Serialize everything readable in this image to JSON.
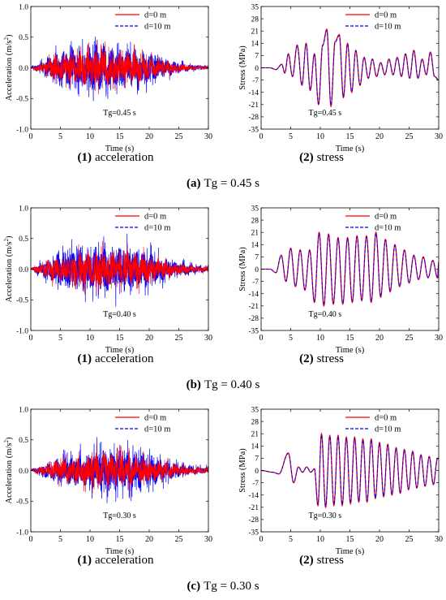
{
  "colors": {
    "series_a": "#ff0000",
    "series_b": "#0000ff",
    "axis": "#000000"
  },
  "rows": [
    {
      "caption_label": "(a)",
      "caption_text": "Tg = 0.45 s",
      "acc": {
        "subcaption_num": "(1)",
        "subcaption_text": "acceleration",
        "xlabel": "Time (s)",
        "ylabel_main": "Acceleration (m/s",
        "ylabel_sup": "2",
        "ylabel_end": ")",
        "annotation": "Tg=0.45 s",
        "legend": [
          "d=0 m",
          "d=10 m"
        ],
        "xticks": [
          "0",
          "5",
          "10",
          "15",
          "20",
          "25",
          "30"
        ],
        "yticks": [
          "-1.0",
          "-0.5",
          "0.0",
          "0.5",
          "1.0"
        ]
      },
      "stress": {
        "subcaption_num": "(2)",
        "subcaption_text": "stress",
        "xlabel": "Time (s)",
        "ylabel": "Stress (MPa)",
        "annotation": "Tg=0.45 s",
        "legend": [
          "d=0 m",
          "d=10 m"
        ],
        "xticks": [
          "0",
          "5",
          "10",
          "15",
          "20",
          "25",
          "30"
        ],
        "yticks": [
          "-35",
          "-28",
          "-21",
          "-14",
          "-7",
          "0",
          "7",
          "14",
          "21",
          "28",
          "35"
        ]
      }
    },
    {
      "caption_label": "(b)",
      "caption_text": "Tg = 0.40 s",
      "acc": {
        "subcaption_num": "(1)",
        "subcaption_text": "acceleration",
        "xlabel": "Time (s)",
        "ylabel_main": "Acceleration (m/s",
        "ylabel_sup": "2",
        "ylabel_end": ")",
        "annotation": "Tg=0.40 s",
        "legend": [
          "d=0 m",
          "d=10 m"
        ],
        "xticks": [
          "0",
          "5",
          "10",
          "15",
          "20",
          "25",
          "30"
        ],
        "yticks": [
          "-1.0",
          "-0.5",
          "0.0",
          "0.5",
          "1.0"
        ]
      },
      "stress": {
        "subcaption_num": "(2)",
        "subcaption_text": "stress",
        "xlabel": "Time (s)",
        "ylabel": "Stress (MPa)",
        "annotation": "Tg=0.40 s",
        "legend": [
          "d=0 m",
          "d=10 m"
        ],
        "xticks": [
          "0",
          "5",
          "10",
          "15",
          "20",
          "25",
          "30"
        ],
        "yticks": [
          "-35",
          "-28",
          "-21",
          "-14",
          "-7",
          "0",
          "7",
          "14",
          "21",
          "28",
          "35"
        ]
      }
    },
    {
      "caption_label": "(c)",
      "caption_text": "Tg = 0.30 s",
      "acc": {
        "subcaption_num": "(1)",
        "subcaption_text": "acceleration",
        "xlabel": "Time (s)",
        "ylabel_main": "Acceleration (m/s",
        "ylabel_sup": "2",
        "ylabel_end": ")",
        "annotation": "Tg=0.30 s",
        "legend": [
          "d=0 m",
          "d=10 m"
        ],
        "xticks": [
          "0",
          "5",
          "10",
          "15",
          "20",
          "25",
          "30"
        ],
        "yticks": [
          "-1.0",
          "-0.5",
          "0.0",
          "0.5",
          "1.0"
        ]
      },
      "stress": {
        "subcaption_num": "(2)",
        "subcaption_text": "stress",
        "xlabel": "Time (s)",
        "ylabel": "Stress (MPa)",
        "annotation": "Tg=0.30 s",
        "legend": [
          "d=0 m",
          "d=10 m"
        ],
        "xticks": [
          "0",
          "5",
          "10",
          "15",
          "20",
          "25",
          "30"
        ],
        "yticks": [
          "-35",
          "-28",
          "-21",
          "-14",
          "-7",
          "0",
          "7",
          "14",
          "21",
          "28",
          "35"
        ]
      }
    }
  ],
  "chart_data": [
    {
      "type": "line",
      "panel": "a-1",
      "xlabel": "Time (s)",
      "ylabel": "Acceleration (m/s2)",
      "xlim": [
        0,
        30
      ],
      "ylim": [
        -1.0,
        1.0
      ],
      "grid": false,
      "legend_position": "top-right",
      "annotation": "Tg=0.45 s",
      "envelope": {
        "x": [
          0,
          2,
          4,
          6,
          8,
          10,
          12,
          14,
          16,
          18,
          20,
          22,
          24,
          26,
          28,
          30
        ],
        "amp": [
          0.02,
          0.15,
          0.38,
          0.45,
          0.5,
          0.6,
          0.55,
          0.5,
          0.5,
          0.45,
          0.35,
          0.25,
          0.18,
          0.1,
          0.07,
          0.05
        ]
      },
      "series": [
        {
          "name": "d=0 m",
          "color": "#ff0000",
          "style": "solid",
          "envelope_scale": 0.78
        },
        {
          "name": "d=10 m",
          "color": "#0000ff",
          "style": "dashed",
          "envelope_scale": 1.0
        }
      ]
    },
    {
      "type": "line",
      "panel": "a-2",
      "xlabel": "Time (s)",
      "ylabel": "Stress (MPa)",
      "xlim": [
        0,
        30
      ],
      "ylim": [
        -35,
        35
      ],
      "grid": false,
      "legend_position": "top-right",
      "annotation": "Tg=0.45 s",
      "extrema": {
        "x": [
          0,
          1.5,
          2.5,
          3.5,
          4.0,
          4.6,
          5.3,
          6.1,
          6.9,
          7.6,
          8.3,
          9.0,
          9.7,
          10.4,
          11.1,
          11.8,
          12.5,
          13.2,
          13.9,
          14.6,
          15.3,
          16.0,
          16.7,
          17.4,
          18.1,
          18.8,
          19.5,
          20.2,
          20.9,
          21.6,
          22.3,
          23.0,
          23.7,
          24.4,
          25.1,
          25.8,
          26.5,
          27.2,
          27.9,
          28.6,
          29.3,
          30.0
        ],
        "y": [
          0,
          0,
          -1,
          2,
          -3,
          8,
          -5,
          13,
          -10,
          14,
          -13,
          8,
          -21,
          13,
          22,
          -22,
          15,
          19,
          -17,
          14,
          -14,
          10,
          -10,
          6,
          -6,
          5,
          -5,
          3,
          -4,
          5,
          -4,
          6,
          -5,
          8,
          -6,
          10,
          -6,
          5,
          -4,
          9,
          -5,
          -7
        ]
      },
      "series": [
        {
          "name": "d=0 m",
          "color": "#ff0000",
          "style": "solid"
        },
        {
          "name": "d=10 m",
          "color": "#0000ff",
          "style": "dashed"
        }
      ]
    },
    {
      "type": "line",
      "panel": "b-1",
      "xlabel": "Time (s)",
      "ylabel": "Acceleration (m/s2)",
      "xlim": [
        0,
        30
      ],
      "ylim": [
        -1.0,
        1.0
      ],
      "grid": false,
      "legend_position": "top-right",
      "annotation": "Tg=0.40 s",
      "envelope": {
        "x": [
          0,
          2,
          4,
          6,
          8,
          10,
          12,
          14,
          16,
          18,
          20,
          22,
          24,
          26,
          28,
          30
        ],
        "amp": [
          0.02,
          0.2,
          0.35,
          0.45,
          0.5,
          0.55,
          0.55,
          0.55,
          0.55,
          0.5,
          0.4,
          0.3,
          0.2,
          0.15,
          0.1,
          0.08
        ]
      },
      "series": [
        {
          "name": "d=0 m",
          "color": "#ff0000",
          "style": "solid",
          "envelope_scale": 0.78
        },
        {
          "name": "d=10 m",
          "color": "#0000ff",
          "style": "dashed",
          "envelope_scale": 1.0
        }
      ]
    },
    {
      "type": "line",
      "panel": "b-2",
      "xlabel": "Time (s)",
      "ylabel": "Stress (MPa)",
      "xlim": [
        0,
        30
      ],
      "ylim": [
        -35,
        35
      ],
      "grid": false,
      "legend_position": "top-right",
      "annotation": "Tg=0.40 s",
      "extrema": {
        "x": [
          0,
          1.5,
          2.5,
          3.4,
          4.2,
          5.0,
          5.8,
          6.6,
          7.4,
          8.2,
          9.0,
          9.8,
          10.6,
          11.4,
          12.2,
          13.0,
          13.8,
          14.6,
          15.4,
          16.2,
          17.0,
          17.8,
          18.6,
          19.4,
          20.2,
          21.0,
          21.8,
          22.6,
          23.4,
          24.2,
          25.0,
          25.8,
          26.6,
          27.4,
          28.2,
          29.0,
          29.8,
          30.0
        ],
        "y": [
          0,
          0,
          -2,
          8,
          -7,
          12,
          -10,
          11,
          -12,
          11,
          -19,
          21,
          -21,
          20,
          -20,
          18,
          -20,
          18,
          -19,
          19,
          -18,
          19,
          -19,
          21,
          -16,
          17,
          -13,
          14,
          -10,
          11,
          -8,
          8,
          -6,
          7,
          -5,
          5,
          -5,
          4
        ]
      },
      "series": [
        {
          "name": "d=0 m",
          "color": "#ff0000",
          "style": "solid"
        },
        {
          "name": "d=10 m",
          "color": "#0000ff",
          "style": "dashed"
        }
      ]
    },
    {
      "type": "line",
      "panel": "c-1",
      "xlabel": "Time (s)",
      "ylabel": "Acceleration (m/s2)",
      "xlim": [
        0,
        30
      ],
      "ylim": [
        -1.0,
        1.0
      ],
      "grid": false,
      "legend_position": "top-right",
      "annotation": "Tg=0.30 s",
      "envelope": {
        "x": [
          0,
          2,
          4,
          6,
          8,
          10,
          12,
          14,
          16,
          18,
          20,
          22,
          24,
          26,
          28,
          30
        ],
        "amp": [
          0.02,
          0.15,
          0.3,
          0.35,
          0.4,
          0.45,
          0.55,
          0.5,
          0.5,
          0.45,
          0.4,
          0.3,
          0.2,
          0.15,
          0.1,
          0.08
        ]
      },
      "series": [
        {
          "name": "d=0 m",
          "color": "#ff0000",
          "style": "solid",
          "envelope_scale": 0.78
        },
        {
          "name": "d=10 m",
          "color": "#0000ff",
          "style": "dashed",
          "envelope_scale": 1.0
        }
      ]
    },
    {
      "type": "line",
      "panel": "c-2",
      "xlabel": "Time (s)",
      "ylabel": "Stress (MPa)",
      "xlim": [
        0,
        30
      ],
      "ylim": [
        -35,
        35
      ],
      "grid": false,
      "legend_position": "top-right",
      "annotation": "Tg=0.30 s",
      "extrema": {
        "x": [
          0,
          2.0,
          3.0,
          4.6,
          5.5,
          6.3,
          7.0,
          7.7,
          8.4,
          9.0,
          9.6,
          10.2,
          10.9,
          11.6,
          12.3,
          13.0,
          13.7,
          14.4,
          15.1,
          15.8,
          16.5,
          17.2,
          17.9,
          18.6,
          19.3,
          20.0,
          20.7,
          21.4,
          22.1,
          22.8,
          23.5,
          24.2,
          24.9,
          25.6,
          26.3,
          27.0,
          27.7,
          28.4,
          29.1,
          29.8,
          30.0
        ],
        "y": [
          0,
          -1,
          -2,
          10,
          -7,
          2,
          -1,
          2,
          -1,
          1,
          -20,
          21,
          -21,
          20,
          -20,
          20,
          -20,
          19,
          -19,
          19,
          -18,
          18,
          -18,
          18,
          -16,
          16,
          -15,
          15,
          -14,
          13,
          -13,
          12,
          -11,
          11,
          -10,
          9,
          -9,
          8,
          -8,
          7,
          7
        ]
      },
      "series": [
        {
          "name": "d=0 m",
          "color": "#ff0000",
          "style": "solid"
        },
        {
          "name": "d=10 m",
          "color": "#0000ff",
          "style": "dashed"
        }
      ]
    }
  ]
}
